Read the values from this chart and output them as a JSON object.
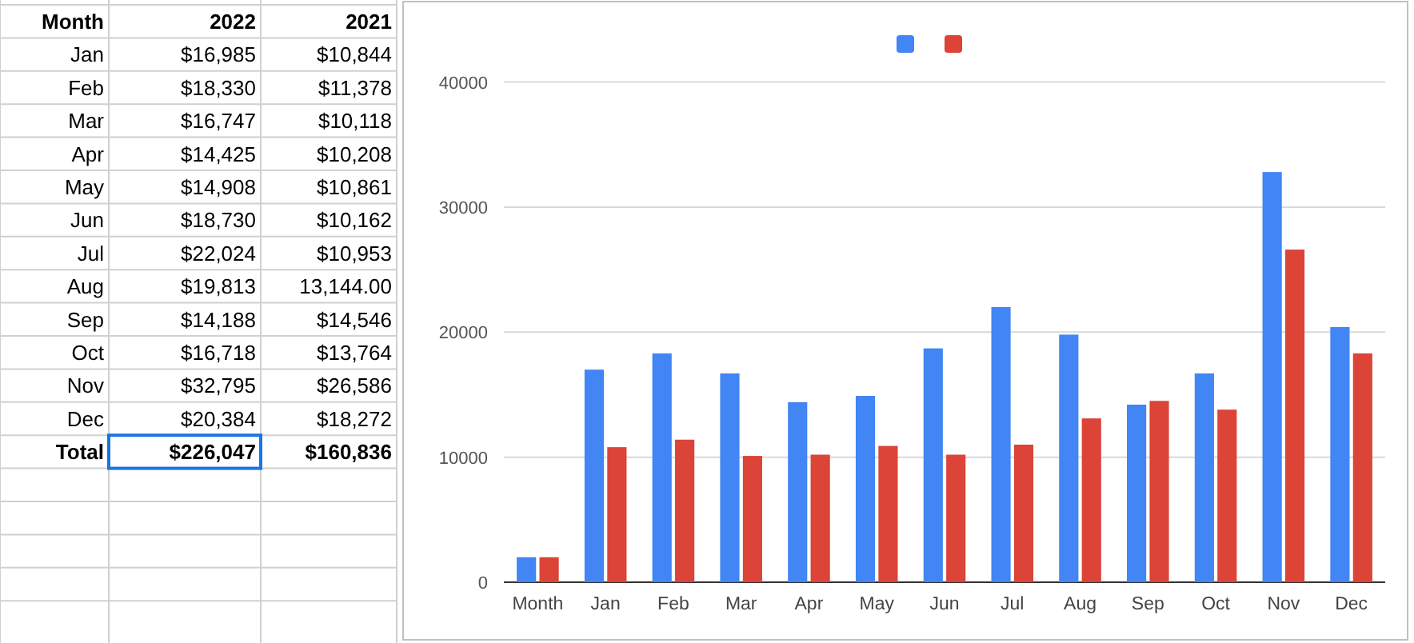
{
  "chart_data": [
    {
      "type": "other",
      "annotations": [
        "Month",
        "2022",
        "2021",
        "Jan",
        "$16,985",
        "$10,844",
        "Feb",
        "$18,330",
        "$11,378",
        "Mar",
        "$16,747",
        "$10,118",
        "Apr",
        "$14,425",
        "$10,208",
        "May",
        "$14,908",
        "$10,861",
        "Jun",
        "$18,730",
        "$10,162",
        "Jul",
        "$22,024",
        "$10,953",
        "Aug",
        "$19,813",
        "13,144.00",
        "Sep",
        "$14,188",
        "$14,546",
        "Oct",
        "$16,718",
        "$13,764",
        "Nov",
        "$32,795",
        "$26,586",
        "Dec",
        "$20,384",
        "$18,272",
        "Total",
        "$226,047",
        "$160,836"
      ]
    },
    {
      "type": "bar",
      "categories": [
        "Month",
        "Jan",
        "Feb",
        "Mar",
        "Apr",
        "May",
        "Jun",
        "Jul",
        "Aug",
        "Sep",
        "Oct",
        "Nov",
        "Dec"
      ],
      "series": [
        {
          "color": "#4285f4",
          "values": [
            2000,
            17000,
            18300,
            16700,
            14400,
            14900,
            18700,
            22000,
            19800,
            14200,
            16700,
            32800,
            20400
          ]
        },
        {
          "color": "#db4437",
          "values": [
            2000,
            10800,
            11400,
            10100,
            10200,
            10900,
            10200,
            11000,
            13100,
            14500,
            13800,
            26600,
            18300
          ]
        }
      ],
      "ylim": [
        0,
        44000
      ],
      "yticks": [
        0,
        10000,
        20000,
        30000,
        40000
      ],
      "grid": "y"
    }
  ]
}
